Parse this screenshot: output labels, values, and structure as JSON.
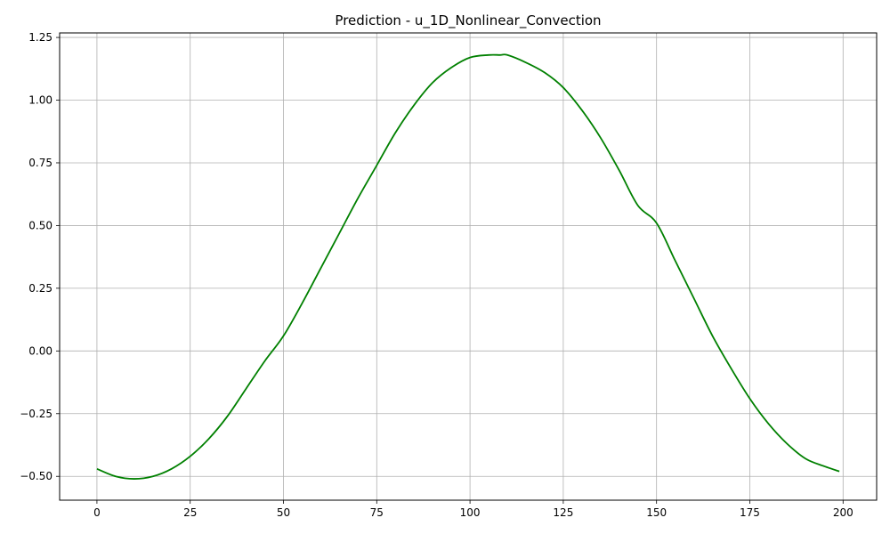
{
  "chart_data": {
    "type": "line",
    "title": "Prediction - u_1D_Nonlinear_Convection",
    "xlabel": "",
    "ylabel": "",
    "xlim": [
      -10,
      209
    ],
    "ylim": [
      -0.595,
      1.268
    ],
    "xticks": [
      0,
      25,
      50,
      75,
      100,
      125,
      150,
      175,
      200
    ],
    "yticks": [
      -0.5,
      -0.25,
      0.0,
      0.25,
      0.5,
      0.75,
      1.0,
      1.25
    ],
    "xtick_labels": [
      "0",
      "25",
      "50",
      "75",
      "100",
      "125",
      "150",
      "175",
      "200"
    ],
    "ytick_labels": [
      "−0.50",
      "−0.25",
      "0.00",
      "0.25",
      "0.50",
      "0.75",
      "1.00",
      "1.25"
    ],
    "grid": true,
    "legend": false,
    "series": [
      {
        "color": "#008000",
        "x": [
          0,
          5,
          10,
          15,
          20,
          25,
          30,
          35,
          40,
          45,
          50,
          55,
          60,
          65,
          70,
          75,
          80,
          85,
          90,
          95,
          100,
          105,
          108,
          110,
          115,
          120,
          125,
          130,
          135,
          140,
          145,
          150,
          155,
          160,
          165,
          170,
          175,
          180,
          185,
          190,
          195,
          199
        ],
        "y": [
          -0.47,
          -0.5,
          -0.51,
          -0.5,
          -0.47,
          -0.42,
          -0.35,
          -0.26,
          -0.15,
          -0.04,
          0.06,
          0.19,
          0.33,
          0.47,
          0.61,
          0.74,
          0.87,
          0.98,
          1.07,
          1.13,
          1.17,
          1.18,
          1.18,
          1.18,
          1.15,
          1.11,
          1.05,
          0.96,
          0.85,
          0.72,
          0.58,
          0.51,
          0.36,
          0.21,
          0.06,
          -0.07,
          -0.19,
          -0.29,
          -0.37,
          -0.43,
          -0.46,
          -0.48
        ]
      }
    ]
  }
}
